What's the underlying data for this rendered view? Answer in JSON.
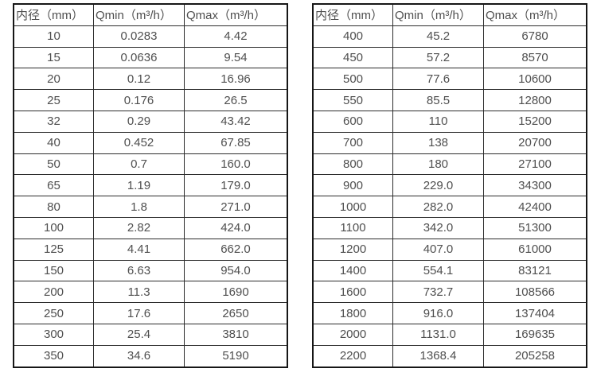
{
  "page": {
    "background_color": "#ffffff",
    "text_color": "#4f4f4f",
    "grid_border_color": "#2c2c2c",
    "outer_border_color": "#161616"
  },
  "tables": [
    {
      "name": "flow-range-table-small-diameters",
      "headers": [
        "内径（mm）",
        "Qmin（m³/h）",
        "Qmax（m³/h）"
      ],
      "rows": [
        [
          "10",
          "0.0283",
          "4.42"
        ],
        [
          "15",
          "0.0636",
          "9.54"
        ],
        [
          "20",
          "0.12",
          "16.96"
        ],
        [
          "25",
          "0.176",
          "26.5"
        ],
        [
          "32",
          "0.29",
          "43.42"
        ],
        [
          "40",
          "0.452",
          "67.85"
        ],
        [
          "50",
          "0.7",
          "160.0"
        ],
        [
          "65",
          "1.19",
          "179.0"
        ],
        [
          "80",
          "1.8",
          "271.0"
        ],
        [
          "100",
          "2.82",
          "424.0"
        ],
        [
          "125",
          "4.41",
          "662.0"
        ],
        [
          "150",
          "6.63",
          "954.0"
        ],
        [
          "200",
          "11.3",
          "1690"
        ],
        [
          "250",
          "17.6",
          "2650"
        ],
        [
          "300",
          "25.4",
          "3810"
        ],
        [
          "350",
          "34.6",
          "5190"
        ]
      ]
    },
    {
      "name": "flow-range-table-large-diameters",
      "headers": [
        "内径（mm）",
        "Qmin（m³/h）",
        "Qmax（m³/h）"
      ],
      "rows": [
        [
          "400",
          "45.2",
          "6780"
        ],
        [
          "450",
          "57.2",
          "8570"
        ],
        [
          "500",
          "77.6",
          "10600"
        ],
        [
          "550",
          "85.5",
          "12800"
        ],
        [
          "600",
          "110",
          "15200"
        ],
        [
          "700",
          "138",
          "20700"
        ],
        [
          "800",
          "180",
          "27100"
        ],
        [
          "900",
          "229.0",
          "34300"
        ],
        [
          "1000",
          "282.0",
          "42400"
        ],
        [
          "1100",
          "342.0",
          "51300"
        ],
        [
          "1200",
          "407.0",
          "61000"
        ],
        [
          "1400",
          "554.1",
          "83121"
        ],
        [
          "1600",
          "732.7",
          "108566"
        ],
        [
          "1800",
          "916.0",
          "137404"
        ],
        [
          "2000",
          "1131.0",
          "169635"
        ],
        [
          "2200",
          "1368.4",
          "205258"
        ]
      ]
    }
  ]
}
